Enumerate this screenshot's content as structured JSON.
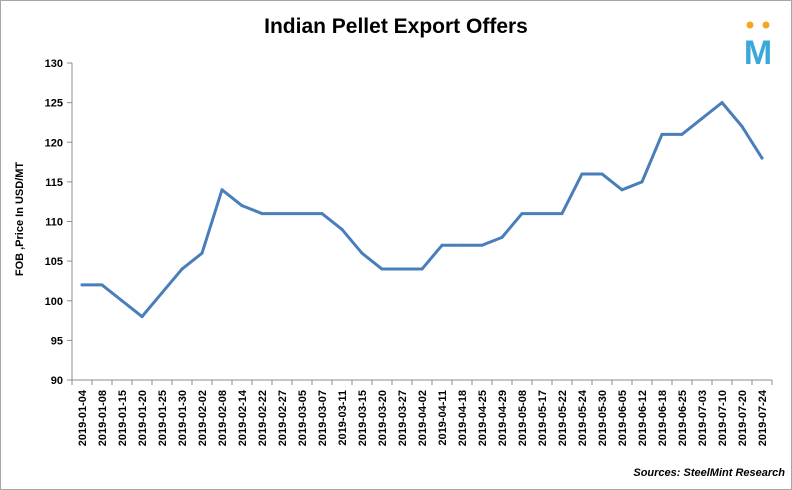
{
  "chart_data": {
    "type": "line",
    "title": "Indian Pellet Export Offers",
    "xlabel": "",
    "ylabel": "FOB ,Price In USD/MT",
    "ylim": [
      90,
      130
    ],
    "yticks": [
      90,
      95,
      100,
      105,
      110,
      115,
      120,
      125,
      130
    ],
    "grid": false,
    "legend": "none",
    "line_color": "#4a7ebb",
    "categories": [
      "2019-01-04",
      "2019-01-08",
      "2019-01-15",
      "2019-01-20",
      "2019-01-25",
      "2019-01-30",
      "2019-02-02",
      "2019-02-08",
      "2019-02-14",
      "2019-02-22",
      "2019-02-27",
      "2019-03-05",
      "2019-03-07",
      "2019-03-11",
      "2019-03-15",
      "2019-03-20",
      "2019-03-27",
      "2019-04-02",
      "2019-04-11",
      "2019-04-18",
      "2019-04-25",
      "2019-04-29",
      "2019-05-08",
      "2019-05-17",
      "2019-05-22",
      "2019-05-24",
      "2019-05-30",
      "2019-06-05",
      "2019-06-12",
      "2019-06-18",
      "2019-06-25",
      "2019-07-03",
      "2019-07-10",
      "2019-07-20",
      "2019-07-24"
    ],
    "values": [
      102,
      102,
      100,
      98,
      101,
      104,
      106,
      114,
      112,
      111,
      111,
      111,
      111,
      109,
      106,
      104,
      104,
      104,
      107,
      107,
      107,
      108,
      111,
      111,
      111,
      116,
      116,
      114,
      115,
      121,
      121,
      123,
      125,
      122,
      118
    ]
  },
  "source_text": "Sources: SteelMint Research",
  "logo": {
    "letter": "M",
    "color": "#3aa8d8",
    "accent": "#f5a623"
  }
}
